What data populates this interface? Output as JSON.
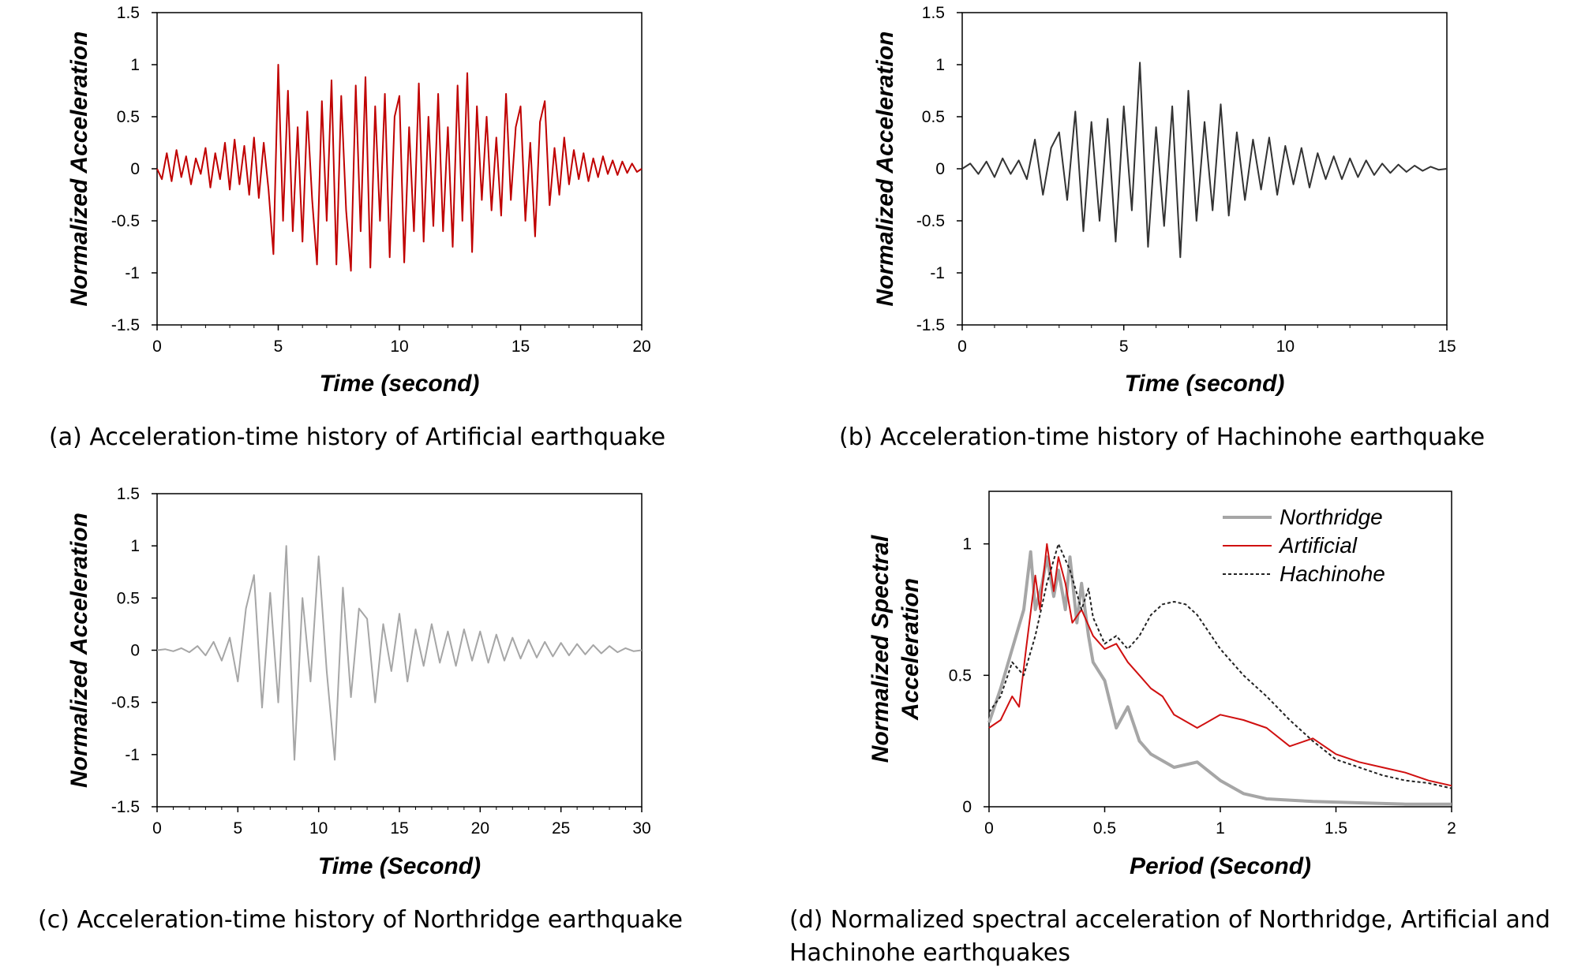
{
  "panels": {
    "a": {
      "caption": "(a) Acceleration-time history of Artificial earthquake"
    },
    "b": {
      "caption": "(b) Acceleration-time history of Hachinohe earthquake"
    },
    "c": {
      "caption": "(c) Acceleration-time history of Northridge earthquake"
    },
    "d": {
      "caption": "(d) Normalized spectral acceleration of Northridge, Artificial and Hachinohe earthquakes"
    }
  },
  "chart_data": [
    {
      "id": "a",
      "type": "line",
      "xlabel": "Time (second)",
      "ylabel": "Normalized Acceleration",
      "xlim": [
        0,
        20
      ],
      "ylim": [
        -1.5,
        1.5
      ],
      "xticks": [
        0,
        5,
        10,
        15,
        20
      ],
      "yticks": [
        -1.5,
        -1,
        -0.5,
        0,
        0.5,
        1,
        1.5
      ],
      "color": "#c00000",
      "series": [
        {
          "x": [
            0,
            0.2,
            0.4,
            0.6,
            0.8,
            1.0,
            1.2,
            1.4,
            1.6,
            1.8,
            2.0,
            2.2,
            2.4,
            2.6,
            2.8,
            3.0,
            3.2,
            3.4,
            3.6,
            3.8,
            4.0,
            4.2,
            4.4,
            4.6,
            4.8,
            5.0,
            5.2,
            5.4,
            5.6,
            5.8,
            6.0,
            6.2,
            6.4,
            6.6,
            6.8,
            7.0,
            7.2,
            7.4,
            7.6,
            7.8,
            8.0,
            8.2,
            8.4,
            8.6,
            8.8,
            9.0,
            9.2,
            9.4,
            9.6,
            9.8,
            10.0,
            10.2,
            10.4,
            10.6,
            10.8,
            11.0,
            11.2,
            11.4,
            11.6,
            11.8,
            12.0,
            12.2,
            12.4,
            12.6,
            12.8,
            13.0,
            13.2,
            13.4,
            13.6,
            13.8,
            14.0,
            14.2,
            14.4,
            14.6,
            14.8,
            15.0,
            15.2,
            15.4,
            15.6,
            15.8,
            16.0,
            16.2,
            16.4,
            16.6,
            16.8,
            17.0,
            17.2,
            17.4,
            17.6,
            17.8,
            18.0,
            18.2,
            18.4,
            18.6,
            18.8,
            19.0,
            19.2,
            19.4,
            19.6,
            19.8,
            20.0
          ],
          "y": [
            0,
            -0.1,
            0.15,
            -0.12,
            0.18,
            -0.08,
            0.12,
            -0.15,
            0.1,
            -0.05,
            0.2,
            -0.18,
            0.15,
            -0.1,
            0.25,
            -0.2,
            0.28,
            -0.15,
            0.22,
            -0.25,
            0.3,
            -0.28,
            0.25,
            -0.2,
            -0.82,
            1.0,
            -0.5,
            0.75,
            -0.6,
            0.4,
            -0.7,
            0.55,
            -0.3,
            -0.92,
            0.65,
            -0.5,
            0.85,
            -0.92,
            0.7,
            -0.4,
            -0.98,
            0.8,
            -0.6,
            0.88,
            -0.95,
            0.6,
            -0.5,
            0.72,
            -0.85,
            0.5,
            0.7,
            -0.9,
            0.4,
            -0.6,
            0.82,
            -0.7,
            0.5,
            -0.55,
            0.72,
            -0.6,
            0.4,
            -0.75,
            0.8,
            -0.5,
            0.92,
            -0.8,
            0.6,
            -0.3,
            0.5,
            -0.4,
            0.3,
            -0.45,
            0.72,
            -0.3,
            0.4,
            0.6,
            -0.5,
            0.25,
            -0.65,
            0.45,
            0.65,
            -0.35,
            0.2,
            -0.25,
            0.3,
            -0.15,
            0.18,
            -0.1,
            0.15,
            -0.12,
            0.1,
            -0.08,
            0.12,
            -0.05,
            0.08,
            -0.06,
            0.07,
            -0.04,
            0.05,
            -0.03,
            0
          ]
        }
      ]
    },
    {
      "id": "b",
      "type": "line",
      "xlabel": "Time (second)",
      "ylabel": "Normalized Acceleration",
      "xlim": [
        0,
        15
      ],
      "ylim": [
        -1.5,
        1.5
      ],
      "xticks": [
        0,
        5,
        10,
        15
      ],
      "yticks": [
        -1.5,
        -1,
        -0.5,
        0,
        0.5,
        1,
        1.5
      ],
      "color": "#333333",
      "series": [
        {
          "x": [
            0,
            0.25,
            0.5,
            0.75,
            1.0,
            1.25,
            1.5,
            1.75,
            2.0,
            2.25,
            2.5,
            2.75,
            3.0,
            3.25,
            3.5,
            3.75,
            4.0,
            4.25,
            4.5,
            4.75,
            5.0,
            5.25,
            5.5,
            5.75,
            6.0,
            6.25,
            6.5,
            6.75,
            7.0,
            7.25,
            7.5,
            7.75,
            8.0,
            8.25,
            8.5,
            8.75,
            9.0,
            9.25,
            9.5,
            9.75,
            10.0,
            10.25,
            10.5,
            10.75,
            11.0,
            11.25,
            11.5,
            11.75,
            12.0,
            12.25,
            12.5,
            12.75,
            13.0,
            13.25,
            13.5,
            13.75,
            14.0,
            14.25,
            14.5,
            14.75,
            15.0
          ],
          "y": [
            0,
            0.05,
            -0.05,
            0.07,
            -0.08,
            0.1,
            -0.05,
            0.08,
            -0.1,
            0.28,
            -0.25,
            0.2,
            0.35,
            -0.3,
            0.55,
            -0.6,
            0.45,
            -0.5,
            0.48,
            -0.7,
            0.6,
            -0.4,
            1.02,
            -0.75,
            0.4,
            -0.55,
            0.6,
            -0.85,
            0.75,
            -0.5,
            0.45,
            -0.4,
            0.62,
            -0.45,
            0.35,
            -0.3,
            0.28,
            -0.2,
            0.3,
            -0.25,
            0.22,
            -0.15,
            0.2,
            -0.18,
            0.15,
            -0.1,
            0.12,
            -0.1,
            0.1,
            -0.08,
            0.08,
            -0.06,
            0.05,
            -0.04,
            0.04,
            -0.03,
            0.03,
            -0.02,
            0.02,
            -0.01,
            0
          ]
        }
      ]
    },
    {
      "id": "c",
      "type": "line",
      "xlabel": "Time (Second)",
      "ylabel": "Normalized Acceleration",
      "xlim": [
        0,
        30
      ],
      "ylim": [
        -1.5,
        1.5
      ],
      "xticks": [
        0,
        5,
        10,
        15,
        20,
        25,
        30
      ],
      "yticks": [
        -1.5,
        -1,
        -0.5,
        0,
        0.5,
        1,
        1.5
      ],
      "color": "#a6a6a6",
      "series": [
        {
          "x": [
            0,
            0.5,
            1.0,
            1.5,
            2.0,
            2.5,
            3.0,
            3.5,
            4.0,
            4.5,
            5.0,
            5.5,
            6.0,
            6.5,
            7.0,
            7.5,
            8.0,
            8.5,
            9.0,
            9.5,
            10.0,
            10.5,
            11.0,
            11.5,
            12.0,
            12.5,
            13.0,
            13.5,
            14.0,
            14.5,
            15.0,
            15.5,
            16.0,
            16.5,
            17.0,
            17.5,
            18.0,
            18.5,
            19.0,
            19.5,
            20.0,
            20.5,
            21.0,
            21.5,
            22.0,
            22.5,
            23.0,
            23.5,
            24.0,
            24.5,
            25.0,
            25.5,
            26.0,
            26.5,
            27.0,
            27.5,
            28.0,
            28.5,
            29.0,
            29.5,
            30.0
          ],
          "y": [
            0,
            0.01,
            -0.01,
            0.02,
            -0.02,
            0.04,
            -0.05,
            0.08,
            -0.1,
            0.12,
            -0.3,
            0.4,
            0.72,
            -0.55,
            0.55,
            -0.5,
            1.0,
            -1.05,
            0.5,
            -0.3,
            0.9,
            -0.2,
            -1.05,
            0.6,
            -0.45,
            0.4,
            0.3,
            -0.5,
            0.25,
            -0.2,
            0.35,
            -0.3,
            0.2,
            -0.15,
            0.25,
            -0.12,
            0.18,
            -0.15,
            0.2,
            -0.1,
            0.18,
            -0.12,
            0.15,
            -0.1,
            0.12,
            -0.08,
            0.1,
            -0.07,
            0.08,
            -0.06,
            0.07,
            -0.05,
            0.06,
            -0.04,
            0.05,
            -0.03,
            0.04,
            -0.02,
            0.02,
            -0.01,
            0
          ]
        }
      ]
    },
    {
      "id": "d",
      "type": "line",
      "xlabel": "Period (Second)",
      "ylabel": "Normalized Spectral Acceleration",
      "ylabel_lines": [
        "Normalized Spectral",
        "Acceleration"
      ],
      "xlim": [
        0,
        2
      ],
      "ylim": [
        0,
        1.2
      ],
      "xticks": [
        0,
        0.5,
        1,
        1.5,
        2
      ],
      "yticks": [
        0,
        0.5,
        1
      ],
      "legend": "top-right",
      "series": [
        {
          "name": "Northridge",
          "color": "#a6a6a6",
          "x": [
            0,
            0.05,
            0.1,
            0.15,
            0.18,
            0.2,
            0.23,
            0.25,
            0.28,
            0.3,
            0.33,
            0.35,
            0.38,
            0.4,
            0.43,
            0.45,
            0.5,
            0.55,
            0.6,
            0.65,
            0.7,
            0.8,
            0.9,
            1.0,
            1.1,
            1.2,
            1.4,
            1.6,
            1.8,
            2.0
          ],
          "y": [
            0.32,
            0.45,
            0.6,
            0.75,
            0.97,
            0.75,
            0.85,
            0.95,
            0.8,
            0.9,
            0.75,
            0.95,
            0.7,
            0.85,
            0.65,
            0.55,
            0.48,
            0.3,
            0.38,
            0.25,
            0.2,
            0.15,
            0.17,
            0.1,
            0.05,
            0.03,
            0.02,
            0.015,
            0.01,
            0.01
          ]
        },
        {
          "name": "Artificial",
          "color": "#d01010",
          "x": [
            0,
            0.05,
            0.1,
            0.13,
            0.16,
            0.2,
            0.22,
            0.25,
            0.28,
            0.3,
            0.33,
            0.36,
            0.4,
            0.45,
            0.5,
            0.55,
            0.6,
            0.65,
            0.7,
            0.75,
            0.8,
            0.9,
            1.0,
            1.1,
            1.2,
            1.3,
            1.4,
            1.5,
            1.6,
            1.7,
            1.8,
            1.9,
            2.0
          ],
          "y": [
            0.3,
            0.33,
            0.42,
            0.38,
            0.6,
            0.88,
            0.75,
            1.0,
            0.82,
            0.95,
            0.85,
            0.7,
            0.75,
            0.65,
            0.6,
            0.62,
            0.55,
            0.5,
            0.45,
            0.42,
            0.35,
            0.3,
            0.35,
            0.33,
            0.3,
            0.23,
            0.26,
            0.2,
            0.17,
            0.15,
            0.13,
            0.1,
            0.08
          ]
        },
        {
          "name": "Hachinohe",
          "color": "#222222",
          "dash": true,
          "x": [
            0,
            0.05,
            0.1,
            0.15,
            0.2,
            0.25,
            0.3,
            0.35,
            0.4,
            0.43,
            0.45,
            0.5,
            0.55,
            0.6,
            0.65,
            0.7,
            0.75,
            0.8,
            0.85,
            0.9,
            1.0,
            1.1,
            1.2,
            1.3,
            1.4,
            1.5,
            1.6,
            1.7,
            1.8,
            1.9,
            2.0
          ],
          "y": [
            0.36,
            0.42,
            0.55,
            0.5,
            0.65,
            0.85,
            1.0,
            0.9,
            0.75,
            0.83,
            0.72,
            0.62,
            0.65,
            0.6,
            0.65,
            0.73,
            0.77,
            0.78,
            0.77,
            0.73,
            0.6,
            0.5,
            0.42,
            0.33,
            0.25,
            0.18,
            0.15,
            0.12,
            0.1,
            0.09,
            0.07
          ]
        }
      ]
    }
  ]
}
